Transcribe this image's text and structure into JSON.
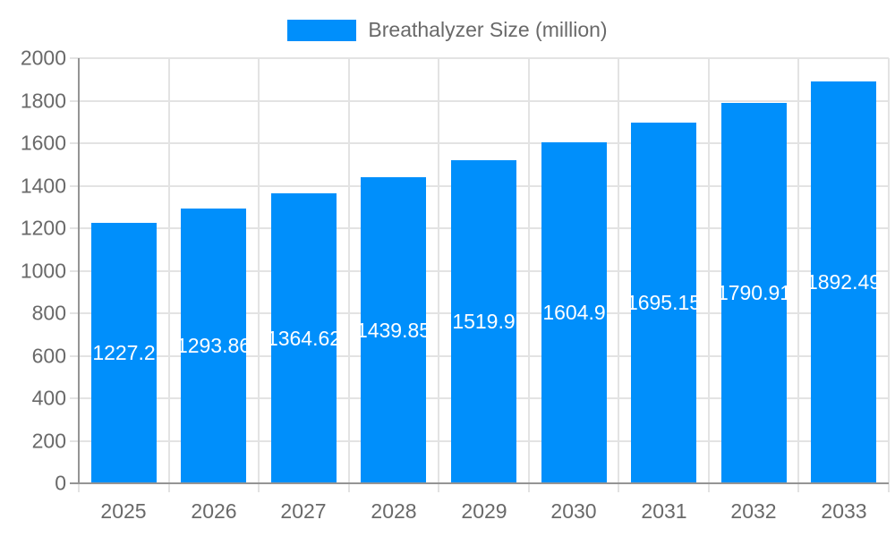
{
  "legend": {
    "label": "Breathalyzer Size (million)"
  },
  "chart_data": {
    "type": "bar",
    "title": "Breathalyzer Size (million)",
    "categories": [
      "2025",
      "2026",
      "2027",
      "2028",
      "2029",
      "2030",
      "2031",
      "2032",
      "2033"
    ],
    "series": [
      {
        "name": "Breathalyzer Size (million)",
        "values": [
          1227.2,
          1293.86,
          1364.62,
          1439.85,
          1519.9,
          1604.9,
          1695.15,
          1790.91,
          1892.49
        ]
      }
    ],
    "value_labels": [
      "1227.2",
      "1293.86",
      "1364.62",
      "1439.85",
      "1519.9",
      "1604.9",
      "1695.15",
      "1790.91",
      "1892.49"
    ],
    "xlabel": "",
    "ylabel": "",
    "ylim": [
      0,
      2000
    ],
    "ytick_step": 200,
    "ytick_labels": [
      "0",
      "200",
      "400",
      "600",
      "800",
      "1000",
      "1200",
      "1400",
      "1600",
      "1800",
      "2000"
    ],
    "grid": true,
    "legend_position": "top",
    "colors": {
      "bar": "#008FFB",
      "grid": "#E3E3E3",
      "axis": "#949494",
      "tick_text": "#696969",
      "value_label": "#FFFFFF"
    }
  }
}
